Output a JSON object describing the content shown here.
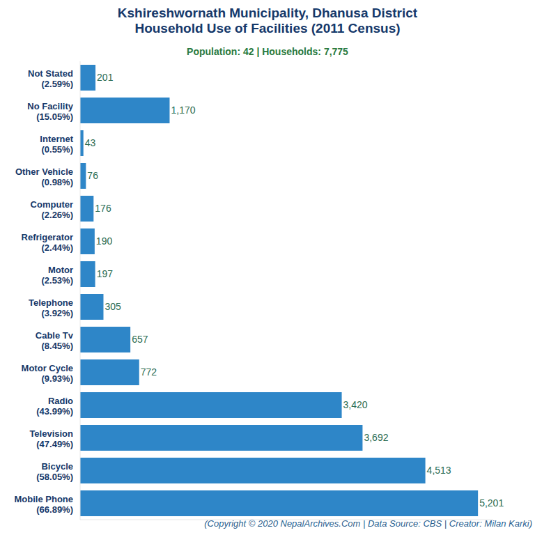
{
  "chart_data": {
    "type": "bar",
    "orientation": "horizontal",
    "title": "Kshireshwornath Municipality, Dhanusa District\nHousehold Use of Facilities (2011 Census)",
    "subtitle": "Population: 42 | Households: 7,775",
    "footer": "(Copyright © 2020 NepalArchives.Com | Data Source: CBS | Creator: Milan Karki)",
    "categories": [
      "Not Stated",
      "No Facility",
      "Internet",
      "Other Vehicle",
      "Computer",
      "Refrigerator",
      "Motor",
      "Telephone",
      "Cable Tv",
      "Motor Cycle",
      "Radio",
      "Television",
      "Bicycle",
      "Mobile Phone"
    ],
    "share_labels": [
      "(2.59%)",
      "(15.05%)",
      "(0.55%)",
      "(0.98%)",
      "(2.26%)",
      "(2.44%)",
      "(2.53%)",
      "(3.92%)",
      "(8.45%)",
      "(9.93%)",
      "(43.99%)",
      "(47.49%)",
      "(58.05%)",
      "(66.89%)"
    ],
    "values": [
      201,
      1170,
      43,
      76,
      176,
      190,
      197,
      305,
      657,
      772,
      3420,
      3692,
      4513,
      5201
    ],
    "value_labels": [
      "201",
      "1,170",
      "43",
      "76",
      "176",
      "190",
      "197",
      "305",
      "657",
      "772",
      "3,420",
      "3,692",
      "4,513",
      "5,201"
    ],
    "color": "#2e86c8",
    "xlim": [
      0,
      5400
    ],
    "xticks": [],
    "grid": false,
    "data_labels": true,
    "tick_labels": "y"
  }
}
